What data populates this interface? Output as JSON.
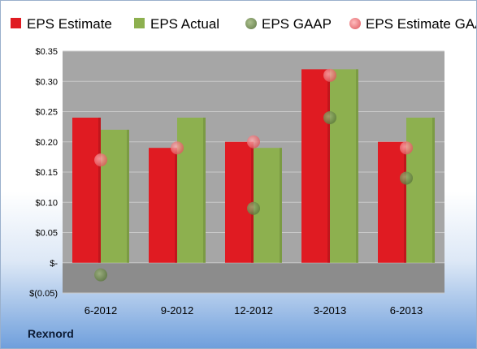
{
  "company": "Rexnord",
  "colors": {
    "eps_estimate": "#e01b22",
    "eps_actual": "#8db04f",
    "eps_gaap": "#6f8a4c",
    "eps_estimate_gaap": "#f07a7e",
    "plot_background": "#a6a6a6"
  },
  "chart_data": {
    "type": "bar",
    "title": "",
    "xlabel": "",
    "ylabel": "",
    "categories": [
      "6-2012",
      "9-2012",
      "12-2012",
      "3-2013",
      "6-2013"
    ],
    "ylim": [
      -0.05,
      0.35
    ],
    "yticks": [
      {
        "value": 0.35,
        "label": "$0.35"
      },
      {
        "value": 0.3,
        "label": "$0.30"
      },
      {
        "value": 0.25,
        "label": "$0.25"
      },
      {
        "value": 0.2,
        "label": "$0.20"
      },
      {
        "value": 0.15,
        "label": "$0.15"
      },
      {
        "value": 0.1,
        "label": "$0.10"
      },
      {
        "value": 0.05,
        "label": "$0.05"
      },
      {
        "value": 0,
        "label": "$-"
      },
      {
        "value": -0.05,
        "label": "$(0.05)"
      }
    ],
    "grid": true,
    "legend_position": "top",
    "series": [
      {
        "name": "EPS Estimate",
        "kind": "bar",
        "values": [
          0.24,
          0.19,
          0.2,
          0.32,
          0.2
        ]
      },
      {
        "name": "EPS Actual",
        "kind": "bar",
        "values": [
          0.22,
          0.24,
          0.19,
          0.32,
          0.24
        ]
      },
      {
        "name": "EPS GAAP",
        "kind": "point",
        "values": [
          -0.02,
          null,
          0.09,
          0.24,
          0.14
        ]
      },
      {
        "name": "EPS Estimate GAAP",
        "kind": "point",
        "values": [
          0.17,
          0.19,
          0.2,
          0.31,
          0.19
        ]
      }
    ]
  }
}
